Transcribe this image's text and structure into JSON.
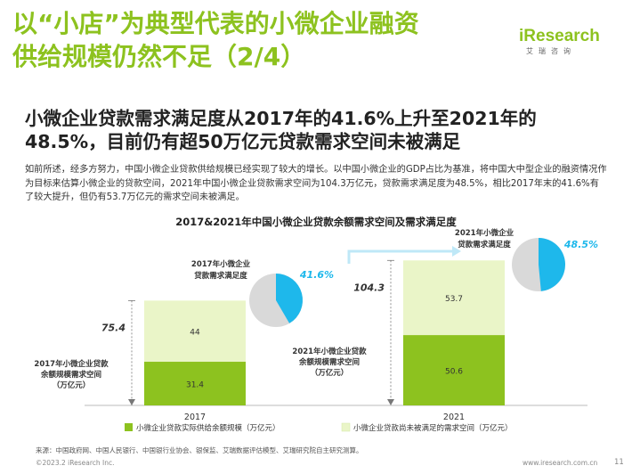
{
  "header": {
    "title_line1": "以“小店”为典型代表的小微企业融资",
    "title_line2": "供给规模仍然不足（2/4）",
    "logo_text": "iResearch",
    "logo_sub": "艾瑞咨询"
  },
  "subtitle_line1": "小微企业贷款需求满足度从2017年的41.6%上升至2021年的",
  "subtitle_line2": "48.5%，目前仍有超50万亿元贷款需求空间未被满足",
  "description": "如前所述，经多方努力，中国小微企业贷款供给规模已经实现了较大的增长。以中国小微企业的GDP占比为基准，将中国大中型企业的融资情况作为目标来估算小微企业的贷款空间，2021年中国小微企业贷款需求空间为104.3万亿元，贷款需求满足度为48.5%，相比2017年末的41.6%有了较大提升，但仍有53.7万亿元的需求空间未被满足。",
  "chart_data": {
    "type": "bar",
    "title": "2017&2021年中国小微企业贷款余额需求空间及需求满足度",
    "categories": [
      "2017",
      "2021"
    ],
    "series": [
      {
        "name": "小微企业贷款实际供给余额规模（万亿元）",
        "values": [
          31.4,
          50.6
        ],
        "color": "#8dc21f"
      },
      {
        "name": "小微企业贷款尚未被满足的需求空间（万亿元）",
        "values": [
          44,
          53.7
        ],
        "color": "#eaf5c8"
      }
    ],
    "totals": [
      75.4,
      104.3
    ],
    "satisfaction_pct": [
      41.6,
      48.5
    ],
    "pie_labels": [
      "2017年小微企业贷款需求满足度",
      "2021年小微企业贷款需求满足度"
    ],
    "satisfaction_labels": [
      "41.6%",
      "48.5%"
    ],
    "left_axis_label": [
      "2017年小微企业贷款",
      "余额规模需求空间",
      "（万亿元）"
    ],
    "right_axis_label": [
      "2021年小微企业贷款",
      "余额规模需求空间",
      "（万亿元）"
    ],
    "colors": {
      "pie_fill": "#1eb8eb",
      "pie_rest": "#d9d9d9",
      "supply": "#8dc21f",
      "gap": "#eaf5c8",
      "accent": "#1eb8eb"
    }
  },
  "source": "来源：中国政府网、中国人民银行、中国银行业协会、银保监、艾瑞数据评估模型、艾瑞研究院自主研究测算。",
  "footer": {
    "copyright": "©2023.2 iResearch Inc.",
    "website": "www.iresearch.com.cn",
    "page": "11"
  }
}
